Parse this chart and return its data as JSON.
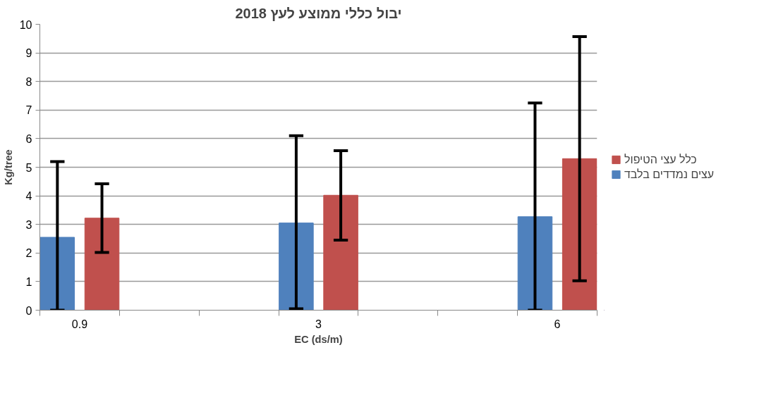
{
  "chart_data": {
    "type": "bar",
    "title": "יבול כללי ממוצע לעץ 2018",
    "xlabel": "EC (ds/m)",
    "ylabel": "Kg/tree",
    "categories": [
      "0.9",
      null,
      null,
      "3",
      null,
      null,
      "6"
    ],
    "series": [
      {
        "name": "עצים נמדדים בלבד",
        "color": "#4f81bd",
        "values": [
          2.55,
          null,
          null,
          3.05,
          null,
          null,
          3.27
        ],
        "errors": [
          [
            0,
            5.2
          ],
          null,
          null,
          [
            0.05,
            6.1
          ],
          null,
          null,
          [
            0,
            7.25
          ]
        ]
      },
      {
        "name": "כלל עצי הטיפול",
        "color": "#c0504d",
        "values": [
          3.22,
          null,
          null,
          4.02,
          null,
          null,
          5.3
        ],
        "errors": [
          [
            2.02,
            4.42
          ],
          null,
          null,
          [
            2.45,
            5.58
          ],
          null,
          null,
          [
            1.03,
            9.57
          ]
        ]
      }
    ],
    "ylim": [
      0,
      10
    ],
    "yticks": [
      0,
      1,
      2,
      3,
      4,
      5,
      6,
      7,
      8,
      9,
      10
    ],
    "grid": "y",
    "legend": "right"
  }
}
